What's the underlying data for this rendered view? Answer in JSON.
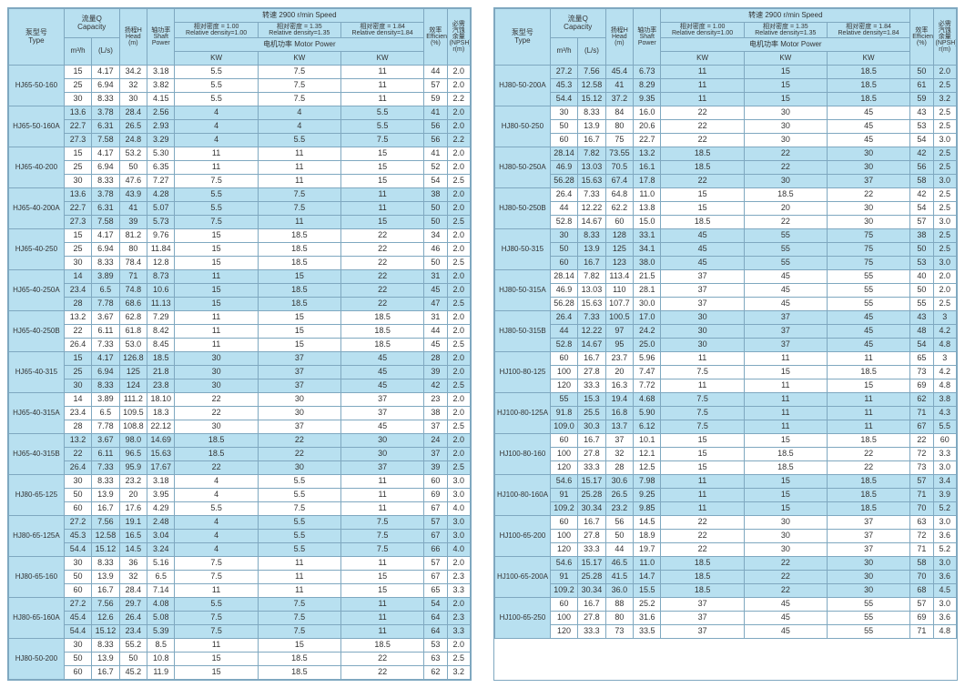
{
  "header": {
    "type": "泵型号\nType",
    "capacity": "流量Q\nCapacity",
    "m3h": "m³/h",
    "ls": "(L/s)",
    "head": "扬程H\nHead\n(m)",
    "shaft": "轴功率\nShaft\nPower",
    "speed": "转速  2900 r/min Speed",
    "rd100": "相对密度 = 1.00\nRelative density=1.00",
    "rd135": "相对密度 = 1.35\nRelative density=1.35",
    "rd184": "相对密度 = 1.84\nRelative density=1.84",
    "motor": "电机功率    Motor Power",
    "kw": "KW",
    "eff": "效率\nEfficiency\n(%)",
    "npsh": "必需\n汽蚀\n余量\n(NPSH)\nr(m)"
  },
  "colors": {
    "headerBg": "#b8e0f0",
    "border": "#7fa8c0"
  },
  "left": [
    {
      "type": "HJ65-50-160",
      "rows": [
        [
          "15",
          "4.17",
          "34.2",
          "3.18",
          "5.5",
          "7.5",
          "11",
          "44",
          "2.0"
        ],
        [
          "25",
          "6.94",
          "32",
          "3.82",
          "5.5",
          "7.5",
          "11",
          "57",
          "2.0"
        ],
        [
          "30",
          "8.33",
          "30",
          "4.15",
          "5.5",
          "7.5",
          "11",
          "59",
          "2.2"
        ]
      ]
    },
    {
      "type": "HJ65-50-160A",
      "shade": true,
      "rows": [
        [
          "13.6",
          "3.78",
          "28.4",
          "2.56",
          "4",
          "4",
          "5.5",
          "41",
          "2.0"
        ],
        [
          "22.7",
          "6.31",
          "26.5",
          "2.93",
          "4",
          "4",
          "5.5",
          "56",
          "2.0"
        ],
        [
          "27.3",
          "7.58",
          "24.8",
          "3.29",
          "4",
          "5.5",
          "7.5",
          "56",
          "2.2"
        ]
      ]
    },
    {
      "type": "HJ65-40-200",
      "rows": [
        [
          "15",
          "4.17",
          "53.2",
          "5.30",
          "11",
          "11",
          "15",
          "41",
          "2.0"
        ],
        [
          "25",
          "6.94",
          "50",
          "6.35",
          "11",
          "11",
          "15",
          "52",
          "2.0"
        ],
        [
          "30",
          "8.33",
          "47.6",
          "7.27",
          "7.5",
          "11",
          "15",
          "54",
          "2.5"
        ]
      ]
    },
    {
      "type": "HJ65-40-200A",
      "shade": true,
      "rows": [
        [
          "13.6",
          "3.78",
          "43.9",
          "4.28",
          "5.5",
          "7.5",
          "11",
          "38",
          "2.0"
        ],
        [
          "22.7",
          "6.31",
          "41",
          "5.07",
          "5.5",
          "7.5",
          "11",
          "50",
          "2.0"
        ],
        [
          "27.3",
          "7.58",
          "39",
          "5.73",
          "7.5",
          "11",
          "15",
          "50",
          "2.5"
        ]
      ]
    },
    {
      "type": "HJ65-40-250",
      "rows": [
        [
          "15",
          "4.17",
          "81.2",
          "9.76",
          "15",
          "18.5",
          "22",
          "34",
          "2.0"
        ],
        [
          "25",
          "6.94",
          "80",
          "11.84",
          "15",
          "18.5",
          "22",
          "46",
          "2.0"
        ],
        [
          "30",
          "8.33",
          "78.4",
          "12.8",
          "15",
          "18.5",
          "22",
          "50",
          "2.5"
        ]
      ]
    },
    {
      "type": "HJ65-40-250A",
      "shade": true,
      "rows": [
        [
          "14",
          "3.89",
          "71",
          "8.73",
          "11",
          "15",
          "22",
          "31",
          "2.0"
        ],
        [
          "23.4",
          "6.5",
          "74.8",
          "10.6",
          "15",
          "18.5",
          "22",
          "45",
          "2.0"
        ],
        [
          "28",
          "7.78",
          "68.6",
          "11.13",
          "15",
          "18.5",
          "22",
          "47",
          "2.5"
        ]
      ]
    },
    {
      "type": "HJ65-40-250B",
      "rows": [
        [
          "13.2",
          "3.67",
          "62.8",
          "7.29",
          "11",
          "15",
          "18.5",
          "31",
          "2.0"
        ],
        [
          "22",
          "6.11",
          "61.8",
          "8.42",
          "11",
          "15",
          "18.5",
          "44",
          "2.0"
        ],
        [
          "26.4",
          "7.33",
          "53.0",
          "8.45",
          "11",
          "15",
          "18.5",
          "45",
          "2.5"
        ]
      ]
    },
    {
      "type": "HJ65-40-315",
      "shade": true,
      "rows": [
        [
          "15",
          "4.17",
          "126.8",
          "18.5",
          "30",
          "37",
          "45",
          "28",
          "2.0"
        ],
        [
          "25",
          "6.94",
          "125",
          "21.8",
          "30",
          "37",
          "45",
          "39",
          "2.0"
        ],
        [
          "30",
          "8.33",
          "124",
          "23.8",
          "30",
          "37",
          "45",
          "42",
          "2.5"
        ]
      ]
    },
    {
      "type": "HJ65-40-315A",
      "rows": [
        [
          "14",
          "3.89",
          "111.2",
          "18.10",
          "22",
          "30",
          "37",
          "23",
          "2.0"
        ],
        [
          "23.4",
          "6.5",
          "109.5",
          "18.3",
          "22",
          "30",
          "37",
          "38",
          "2.0"
        ],
        [
          "28",
          "7.78",
          "108.8",
          "22.12",
          "30",
          "37",
          "45",
          "37",
          "2.5"
        ]
      ]
    },
    {
      "type": "HJ65-40-315B",
      "shade": true,
      "rows": [
        [
          "13.2",
          "3.67",
          "98.0",
          "14.69",
          "18.5",
          "22",
          "30",
          "24",
          "2.0"
        ],
        [
          "22",
          "6.11",
          "96.5",
          "15.63",
          "18.5",
          "22",
          "30",
          "37",
          "2.0"
        ],
        [
          "26.4",
          "7.33",
          "95.9",
          "17.67",
          "22",
          "30",
          "37",
          "39",
          "2.5"
        ]
      ]
    },
    {
      "type": "HJ80-65-125",
      "rows": [
        [
          "30",
          "8.33",
          "23.2",
          "3.18",
          "4",
          "5.5",
          "11",
          "60",
          "3.0"
        ],
        [
          "50",
          "13.9",
          "20",
          "3.95",
          "4",
          "5.5",
          "11",
          "69",
          "3.0"
        ],
        [
          "60",
          "16.7",
          "17.6",
          "4.29",
          "5.5",
          "7.5",
          "11",
          "67",
          "4.0"
        ]
      ]
    },
    {
      "type": "HJ80-65-125A",
      "shade": true,
      "rows": [
        [
          "27.2",
          "7.56",
          "19.1",
          "2.48",
          "4",
          "5.5",
          "7.5",
          "57",
          "3.0"
        ],
        [
          "45.3",
          "12.58",
          "16.5",
          "3.04",
          "4",
          "5.5",
          "7.5",
          "67",
          "3.0"
        ],
        [
          "54.4",
          "15.12",
          "14.5",
          "3.24",
          "4",
          "5.5",
          "7.5",
          "66",
          "4.0"
        ]
      ]
    },
    {
      "type": "HJ80-65-160",
      "rows": [
        [
          "30",
          "8.33",
          "36",
          "5.16",
          "7.5",
          "11",
          "11",
          "57",
          "2.0"
        ],
        [
          "50",
          "13.9",
          "32",
          "6.5",
          "7.5",
          "11",
          "15",
          "67",
          "2.3"
        ],
        [
          "60",
          "16.7",
          "28.4",
          "7.14",
          "11",
          "11",
          "15",
          "65",
          "3.3"
        ]
      ]
    },
    {
      "type": "HJ80-65-160A",
      "shade": true,
      "rows": [
        [
          "27.2",
          "7.56",
          "29.7",
          "4.08",
          "5.5",
          "7.5",
          "11",
          "54",
          "2.0"
        ],
        [
          "45.4",
          "12.6",
          "26.4",
          "5.08",
          "7.5",
          "7.5",
          "11",
          "64",
          "2.3"
        ],
        [
          "54.4",
          "15.12",
          "23.4",
          "5.39",
          "7.5",
          "7.5",
          "11",
          "64",
          "3.3"
        ]
      ]
    },
    {
      "type": "HJ80-50-200",
      "rows": [
        [
          "30",
          "8.33",
          "55.2",
          "8.5",
          "11",
          "15",
          "18.5",
          "53",
          "2.0"
        ],
        [
          "50",
          "13.9",
          "50",
          "10.8",
          "15",
          "18.5",
          "22",
          "63",
          "2.5"
        ],
        [
          "60",
          "16.7",
          "45.2",
          "11.9",
          "15",
          "18.5",
          "22",
          "62",
          "3.2"
        ]
      ]
    }
  ],
  "right": [
    {
      "type": "HJ80-50-200A",
      "shade": true,
      "rows": [
        [
          "27.2",
          "7.56",
          "45.4",
          "6.73",
          "11",
          "15",
          "18.5",
          "50",
          "2.0"
        ],
        [
          "45.3",
          "12.58",
          "41",
          "8.29",
          "11",
          "15",
          "18.5",
          "61",
          "2.5"
        ],
        [
          "54.4",
          "15.12",
          "37.2",
          "9.35",
          "11",
          "15",
          "18.5",
          "59",
          "3.2"
        ]
      ]
    },
    {
      "type": "HJ80-50-250",
      "rows": [
        [
          "30",
          "8.33",
          "84",
          "16.0",
          "22",
          "30",
          "45",
          "43",
          "2.5"
        ],
        [
          "50",
          "13.9",
          "80",
          "20.6",
          "22",
          "30",
          "45",
          "53",
          "2.5"
        ],
        [
          "60",
          "16.7",
          "75",
          "22.7",
          "22",
          "30",
          "45",
          "54",
          "3.0"
        ]
      ]
    },
    {
      "type": "HJ80-50-250A",
      "shade": true,
      "rows": [
        [
          "28.14",
          "7.82",
          "73.55",
          "13.2",
          "18.5",
          "22",
          "30",
          "42",
          "2.5"
        ],
        [
          "46.9",
          "13.03",
          "70.5",
          "16.1",
          "18.5",
          "22",
          "30",
          "56",
          "2.5"
        ],
        [
          "56.28",
          "15.63",
          "67.4",
          "17.8",
          "22",
          "30",
          "37",
          "58",
          "3.0"
        ]
      ]
    },
    {
      "type": "HJ80-50-250B",
      "rows": [
        [
          "26.4",
          "7.33",
          "64.8",
          "11.0",
          "15",
          "18.5",
          "22",
          "42",
          "2.5"
        ],
        [
          "44",
          "12.22",
          "62.2",
          "13.8",
          "15",
          "20",
          "30",
          "54",
          "2.5"
        ],
        [
          "52.8",
          "14.67",
          "60",
          "15.0",
          "18.5",
          "22",
          "30",
          "57",
          "3.0"
        ]
      ]
    },
    {
      "type": "HJ80-50-315",
      "shade": true,
      "rows": [
        [
          "30",
          "8.33",
          "128",
          "33.1",
          "45",
          "55",
          "75",
          "38",
          "2.5"
        ],
        [
          "50",
          "13.9",
          "125",
          "34.1",
          "45",
          "55",
          "75",
          "50",
          "2.5"
        ],
        [
          "60",
          "16.7",
          "123",
          "38.0",
          "45",
          "55",
          "75",
          "53",
          "3.0"
        ]
      ]
    },
    {
      "type": "HJ80-50-315A",
      "rows": [
        [
          "28.14",
          "7.82",
          "113.4",
          "21.5",
          "37",
          "45",
          "55",
          "40",
          "2.0"
        ],
        [
          "46.9",
          "13.03",
          "110",
          "28.1",
          "37",
          "45",
          "55",
          "50",
          "2.0"
        ],
        [
          "56.28",
          "15.63",
          "107.7",
          "30.0",
          "37",
          "45",
          "55",
          "55",
          "2.5"
        ]
      ]
    },
    {
      "type": "HJ80-50-315B",
      "shade": true,
      "rows": [
        [
          "26.4",
          "7.33",
          "100.5",
          "17.0",
          "30",
          "37",
          "45",
          "43",
          "3"
        ],
        [
          "44",
          "12.22",
          "97",
          "24.2",
          "30",
          "37",
          "45",
          "48",
          "4.2"
        ],
        [
          "52.8",
          "14.67",
          "95",
          "25.0",
          "30",
          "37",
          "45",
          "54",
          "4.8"
        ]
      ]
    },
    {
      "type": "HJ100-80-125",
      "rows": [
        [
          "60",
          "16.7",
          "23.7",
          "5.96",
          "11",
          "11",
          "11",
          "65",
          "3"
        ],
        [
          "100",
          "27.8",
          "20",
          "7.47",
          "7.5",
          "15",
          "18.5",
          "73",
          "4.2"
        ],
        [
          "120",
          "33.3",
          "16.3",
          "7.72",
          "11",
          "11",
          "15",
          "69",
          "4.8"
        ]
      ]
    },
    {
      "type": "HJ100-80-125A",
      "shade": true,
      "rows": [
        [
          "55",
          "15.3",
          "19.4",
          "4.68",
          "7.5",
          "11",
          "11",
          "62",
          "3.8"
        ],
        [
          "91.8",
          "25.5",
          "16.8",
          "5.90",
          "7.5",
          "11",
          "11",
          "71",
          "4.3"
        ],
        [
          "109.0",
          "30.3",
          "13.7",
          "6.12",
          "7.5",
          "11",
          "11",
          "67",
          "5.5"
        ]
      ]
    },
    {
      "type": "HJ100-80-160",
      "rows": [
        [
          "60",
          "16.7",
          "37",
          "10.1",
          "15",
          "15",
          "18.5",
          "22",
          "60",
          "2.5"
        ],
        [
          "100",
          "27.8",
          "32",
          "12.1",
          "15",
          "18.5",
          "22",
          "72",
          "3.3"
        ],
        [
          "120",
          "33.3",
          "28",
          "12.5",
          "15",
          "18.5",
          "22",
          "73",
          "3.0"
        ]
      ]
    },
    {
      "type": "HJ100-80-160A",
      "shade": true,
      "rows": [
        [
          "54.6",
          "15.17",
          "30.6",
          "7.98",
          "11",
          "15",
          "18.5",
          "57",
          "3.4"
        ],
        [
          "91",
          "25.28",
          "26.5",
          "9.25",
          "11",
          "15",
          "18.5",
          "71",
          "3.9"
        ],
        [
          "109.2",
          "30.34",
          "23.2",
          "9.85",
          "11",
          "15",
          "18.5",
          "70",
          "5.2"
        ]
      ]
    },
    {
      "type": "HJ100-65-200",
      "rows": [
        [
          "60",
          "16.7",
          "56",
          "14.5",
          "22",
          "30",
          "37",
          "63",
          "3.0"
        ],
        [
          "100",
          "27.8",
          "50",
          "18.9",
          "22",
          "30",
          "37",
          "72",
          "3.6"
        ],
        [
          "120",
          "33.3",
          "44",
          "19.7",
          "22",
          "30",
          "37",
          "71",
          "5.2"
        ]
      ]
    },
    {
      "type": "HJ100-65-200A",
      "shade": true,
      "rows": [
        [
          "54.6",
          "15.17",
          "46.5",
          "11.0",
          "18.5",
          "22",
          "30",
          "58",
          "3.0"
        ],
        [
          "91",
          "25.28",
          "41.5",
          "14.7",
          "18.5",
          "22",
          "30",
          "70",
          "3.6"
        ],
        [
          "109.2",
          "30.34",
          "36.0",
          "15.5",
          "18.5",
          "22",
          "30",
          "68",
          "4.5"
        ]
      ]
    },
    {
      "type": "HJ100-65-250",
      "rows": [
        [
          "60",
          "16.7",
          "88",
          "25.2",
          "37",
          "45",
          "55",
          "57",
          "3.0"
        ],
        [
          "100",
          "27.8",
          "80",
          "31.6",
          "37",
          "45",
          "55",
          "69",
          "3.6"
        ],
        [
          "120",
          "33.3",
          "73",
          "33.5",
          "37",
          "45",
          "55",
          "71",
          "4.8"
        ]
      ]
    }
  ]
}
